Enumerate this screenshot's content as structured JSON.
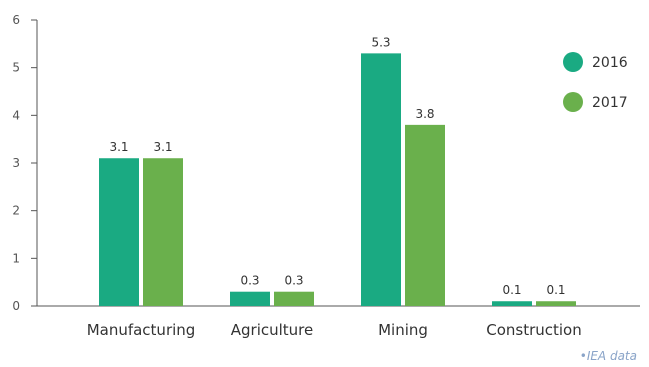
{
  "chart_data": {
    "type": "bar",
    "categories": [
      "Manufacturing",
      "Agriculture",
      "Mining",
      "Construction"
    ],
    "series": [
      {
        "name": "2016",
        "values": [
          3.1,
          0.3,
          5.3,
          0.1
        ],
        "color": "#1aaa82"
      },
      {
        "name": "2017",
        "values": [
          3.1,
          0.3,
          3.8,
          0.1
        ],
        "color": "#6ab04c"
      }
    ],
    "yticks": [
      0,
      1,
      2,
      3,
      4,
      5,
      6
    ],
    "ylim": [
      0,
      6
    ],
    "grid": false,
    "legend_position": "right"
  },
  "source": "•IEA data"
}
